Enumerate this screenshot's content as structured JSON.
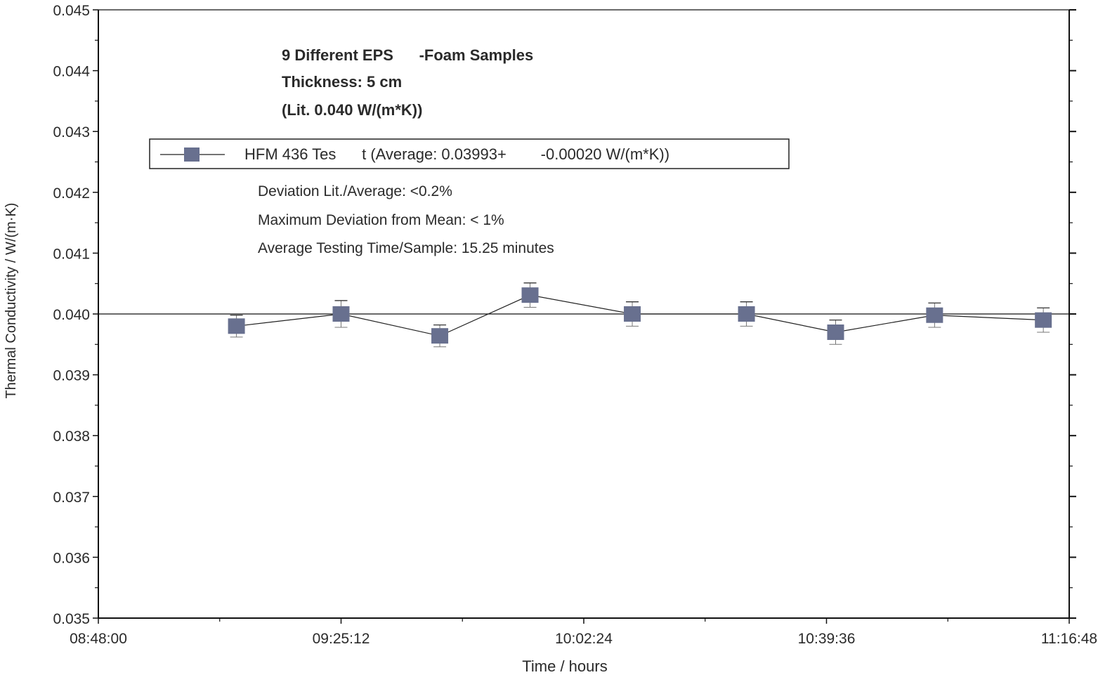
{
  "chart_data": {
    "type": "line",
    "xlabel": "Time / hours",
    "ylabel": "Thermal Conductivity / W/(m·K)",
    "x_ticks": [
      "08:48:00",
      "09:25:12",
      "10:02:24",
      "10:39:36",
      "11:16:48"
    ],
    "xlim": [
      "08:48:00",
      "11:16:48"
    ],
    "ylim": [
      0.035,
      0.045
    ],
    "y_ticks": [
      "0.035",
      "0.036",
      "0.037",
      "0.038",
      "0.039",
      "0.040",
      "0.041",
      "0.042",
      "0.043",
      "0.044",
      "0.045"
    ],
    "reference_line": 0.04,
    "grid": false,
    "legend_position": "top",
    "annotations": {
      "title_lines": [
        "9 Different EPS      -Foam Samples",
        "Thickness: 5 cm",
        "(Lit. 0.040 W/(m*K))"
      ],
      "notes": [
        "Deviation Lit./Average: <0.2%",
        "Maximum Deviation from Mean: < 1%",
        "Average Testing Time/Sample: 15.25 minutes"
      ]
    },
    "series": [
      {
        "name": "HFM 436 Tes      t (Average: 0.03993+        -0.00020 W/(m*K))",
        "color": "#68708f",
        "marker": "square",
        "x": [
          "09:09:10",
          "09:25:12",
          "09:40:20",
          "09:54:10",
          "10:09:50",
          "10:27:20",
          "10:41:00",
          "10:56:10",
          "11:12:50"
        ],
        "y": [
          0.0398,
          0.04,
          0.03964,
          0.04031,
          0.04,
          0.04,
          0.0397,
          0.03998,
          0.0399
        ],
        "error": [
          0.00018,
          0.00022,
          0.00018,
          0.0002,
          0.0002,
          0.0002,
          0.0002,
          0.0002,
          0.0002
        ]
      }
    ]
  }
}
